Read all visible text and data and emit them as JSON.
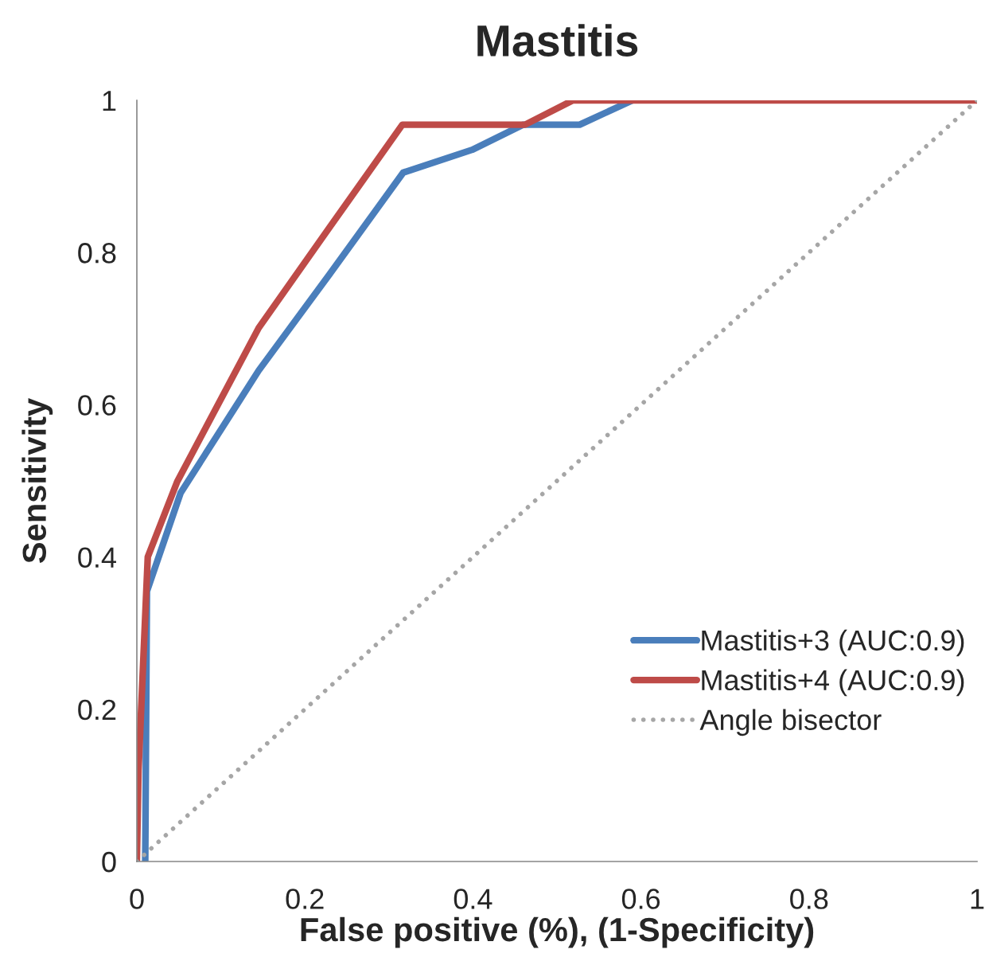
{
  "chart_data": {
    "type": "line",
    "title": "Mastitis",
    "xlabel": "False positive (%), (1-Specificity)",
    "ylabel": "Sensitivity",
    "xlim": [
      0,
      1
    ],
    "ylim": [
      0,
      1
    ],
    "xticks": [
      0,
      0.2,
      0.4,
      0.6,
      0.8,
      1
    ],
    "yticks": [
      0,
      0.2,
      0.4,
      0.6,
      0.8,
      1
    ],
    "grid": false,
    "legend": "bottom right",
    "marker": "none",
    "series": [
      {
        "name": "Mastitis+3 (AUC:0.9)",
        "color": "#4a7ebb",
        "line_style": "solid",
        "x": [
          0.01,
          0.012,
          0.052,
          0.145,
          0.229,
          0.317,
          0.399,
          0.46,
          0.527,
          0.59
        ],
        "values": [
          0,
          0.355,
          0.484,
          0.645,
          0.771,
          0.905,
          0.935,
          0.968,
          0.968,
          1
        ]
      },
      {
        "name": "Mastitis+4 (AUC:0.9)",
        "color": "#be4b48",
        "line_style": "solid",
        "x": [
          0,
          0.002,
          0.013,
          0.048,
          0.145,
          0.23,
          0.316,
          0.462,
          0.519,
          1
        ],
        "values": [
          0,
          0.12,
          0.4,
          0.499,
          0.701,
          0.834,
          0.968,
          0.968,
          1,
          1
        ]
      },
      {
        "name": "Angle bisector",
        "color": "#a6a6a6",
        "line_style": "dotted",
        "x": [
          0,
          1
        ],
        "values": [
          0,
          1
        ]
      }
    ]
  }
}
